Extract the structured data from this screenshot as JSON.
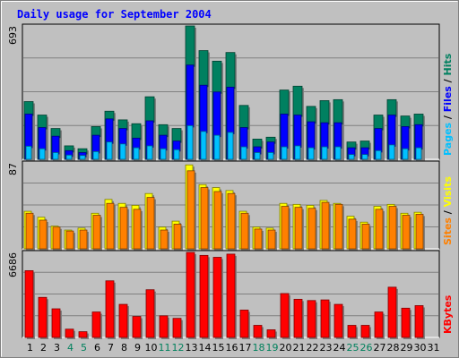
{
  "chart_data": [
    {
      "type": "bar",
      "title": "Daily usage for September 2004",
      "panel": "top",
      "ymax_label": "693",
      "ylim": [
        0,
        693
      ],
      "legend": {
        "placement": "right",
        "entries": [
          "Pages",
          "/",
          "Files",
          "/",
          "Hits"
        ],
        "colors": [
          "#00c0ff",
          "#000000",
          "#0000ff",
          "#000000",
          "#008060"
        ]
      },
      "categories": [
        "1",
        "2",
        "3",
        "4",
        "5",
        "6",
        "7",
        "8",
        "9",
        "10",
        "11",
        "12",
        "13",
        "14",
        "15",
        "16",
        "17",
        "18",
        "19",
        "20",
        "21",
        "22",
        "23",
        "24",
        "25",
        "26",
        "27",
        "28",
        "29",
        "30",
        "31"
      ],
      "series": [
        {
          "name": "Hits",
          "color": "#008060",
          "values": [
            300,
            230,
            160,
            70,
            55,
            170,
            250,
            205,
            185,
            325,
            180,
            160,
            693,
            565,
            510,
            555,
            280,
            105,
            115,
            360,
            380,
            275,
            305,
            310,
            90,
            95,
            230,
            310,
            225,
            235,
            0
          ]
        },
        {
          "name": "Files",
          "color": "#0000ff",
          "values": [
            235,
            165,
            120,
            45,
            35,
            125,
            210,
            160,
            110,
            200,
            125,
            95,
            490,
            385,
            350,
            375,
            165,
            65,
            90,
            235,
            230,
            195,
            190,
            190,
            60,
            60,
            160,
            230,
            170,
            180,
            0
          ]
        },
        {
          "name": "Pages",
          "color": "#00c0ff",
          "values": [
            68,
            55,
            35,
            22,
            20,
            40,
            90,
            80,
            60,
            70,
            55,
            50,
            175,
            145,
            125,
            140,
            65,
            35,
            35,
            65,
            70,
            60,
            65,
            65,
            25,
            25,
            45,
            75,
            55,
            60,
            0
          ]
        }
      ]
    },
    {
      "type": "bar",
      "panel": "middle",
      "ymax_label": "87",
      "ylim": [
        0,
        87
      ],
      "legend": {
        "placement": "right",
        "entries": [
          "Sites",
          "/",
          "Visits"
        ],
        "colors": [
          "#ff8000",
          "#000000",
          "#ffff00"
        ]
      },
      "categories": [
        "1",
        "2",
        "3",
        "4",
        "5",
        "6",
        "7",
        "8",
        "9",
        "10",
        "11",
        "12",
        "13",
        "14",
        "15",
        "16",
        "17",
        "18",
        "19",
        "20",
        "21",
        "22",
        "23",
        "24",
        "25",
        "26",
        "27",
        "28",
        "29",
        "30",
        "31"
      ],
      "series": [
        {
          "name": "Visits",
          "color": "#ffff00",
          "values": [
            38,
            32,
            23,
            19,
            21,
            36,
            50,
            46,
            44,
            56,
            22,
            28,
            85,
            65,
            62,
            59,
            38,
            22,
            21,
            46,
            45,
            44,
            49,
            46,
            33,
            27,
            43,
            45,
            36,
            37,
            0
          ]
        },
        {
          "name": "Sites",
          "color": "#ff8000",
          "values": [
            36,
            29,
            22,
            18,
            19,
            34,
            46,
            42,
            40,
            52,
            19,
            25,
            79,
            62,
            58,
            56,
            36,
            20,
            19,
            43,
            42,
            41,
            47,
            45,
            30,
            25,
            40,
            43,
            34,
            35,
            0
          ]
        }
      ]
    },
    {
      "type": "bar",
      "panel": "bottom",
      "ymax_label": "6686",
      "ylim": [
        0,
        6686
      ],
      "legend": {
        "placement": "right",
        "entries": [
          "KBytes"
        ],
        "colors": [
          "#ff0000"
        ]
      },
      "categories": [
        "1",
        "2",
        "3",
        "4",
        "5",
        "6",
        "7",
        "8",
        "9",
        "10",
        "11",
        "12",
        "13",
        "14",
        "15",
        "16",
        "17",
        "18",
        "19",
        "20",
        "21",
        "22",
        "23",
        "24",
        "25",
        "26",
        "27",
        "28",
        "29",
        "30",
        "31"
      ],
      "series": [
        {
          "name": "KBytes",
          "color": "#ff0000",
          "values": [
            5250,
            3150,
            2250,
            650,
            450,
            2000,
            4450,
            2600,
            1650,
            3750,
            1700,
            1500,
            6686,
            6450,
            6300,
            6550,
            2150,
            950,
            600,
            3450,
            3000,
            2900,
            2950,
            2600,
            950,
            950,
            2000,
            3950,
            2300,
            2500,
            0
          ]
        }
      ]
    }
  ],
  "x_axis": {
    "labels": [
      "1",
      "2",
      "3",
      "4",
      "5",
      "6",
      "7",
      "8",
      "9",
      "10",
      "11",
      "12",
      "13",
      "14",
      "15",
      "16",
      "17",
      "18",
      "19",
      "20",
      "21",
      "22",
      "23",
      "24",
      "25",
      "26",
      "27",
      "28",
      "29",
      "30",
      "31"
    ],
    "weekend_days": [
      4,
      5,
      11,
      12,
      18,
      19,
      25,
      26
    ],
    "colors": {
      "weekday": "#000000",
      "weekend": "#00805c"
    }
  },
  "colors": {
    "background": "#c0c0c0",
    "plot_background": "#c0c0c0",
    "title": "#0000ff",
    "gridline": "#808080"
  }
}
